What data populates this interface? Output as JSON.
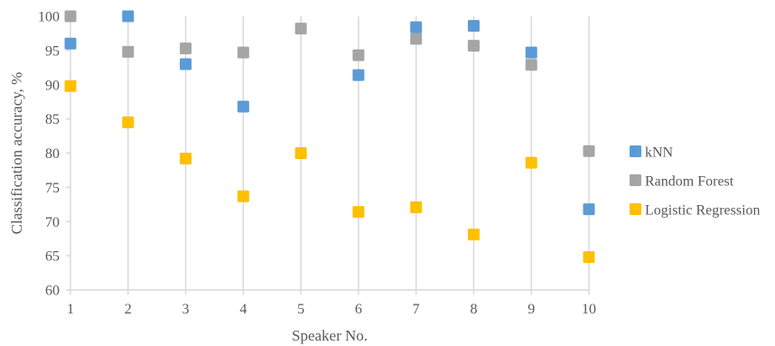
{
  "chart_data": {
    "type": "scatter",
    "title": "",
    "xlabel": "Speaker No.",
    "ylabel": "Classification accuracy, %",
    "xlim": [
      1,
      10
    ],
    "ylim": [
      60,
      100
    ],
    "x_ticks": [
      "1",
      "2",
      "3",
      "4",
      "5",
      "6",
      "7",
      "8",
      "9",
      "10"
    ],
    "y_ticks": [
      "60",
      "65",
      "70",
      "75",
      "80",
      "85",
      "90",
      "95",
      "100"
    ],
    "grid": "vertical gridlines at each speaker",
    "legend_position": "right",
    "series": [
      {
        "name": "kNN",
        "color": "#5B9BD5",
        "x": [
          1,
          2,
          3,
          4,
          6,
          7,
          8,
          9,
          10
        ],
        "y": [
          96,
          100,
          93,
          86.8,
          91.4,
          98.4,
          98.6,
          94.7,
          71.8
        ]
      },
      {
        "name": "Random Forest",
        "color": "#A5A5A5",
        "x": [
          1,
          2,
          3,
          4,
          5,
          6,
          7,
          8,
          9,
          10
        ],
        "y": [
          100,
          94.8,
          95.3,
          94.7,
          98.2,
          94.3,
          96.7,
          95.7,
          92.9,
          80.3
        ]
      },
      {
        "name": "Logistic Regression",
        "color": "#FFC000",
        "x": [
          1,
          2,
          3,
          4,
          5,
          6,
          7,
          8,
          9,
          10
        ],
        "y": [
          89.8,
          84.5,
          79.2,
          73.7,
          80,
          71.4,
          72.1,
          68.1,
          78.6,
          64.8
        ]
      }
    ]
  }
}
